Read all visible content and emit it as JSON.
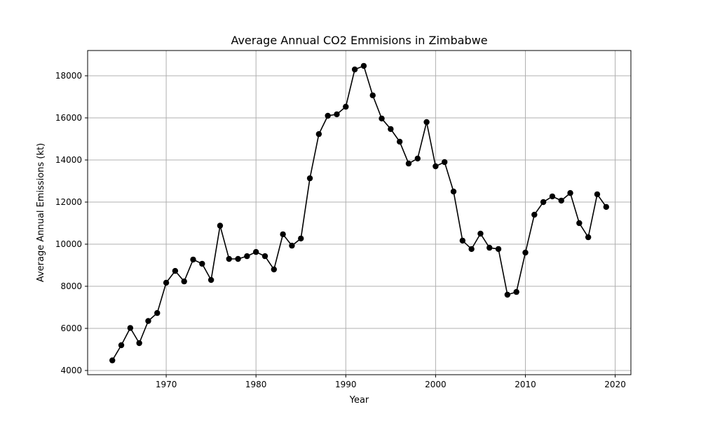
{
  "chart_data": {
    "type": "line",
    "title": "Average Annual CO2 Emmisions in Zimbabwe",
    "xlabel": "Year",
    "ylabel": "Average Annual Emissions (kt)",
    "xlim": [
      1961.25,
      2021.75
    ],
    "ylim": [
      3800,
      19200
    ],
    "x_ticks": [
      1970,
      1980,
      1990,
      2000,
      2010,
      2020
    ],
    "y_ticks": [
      4000,
      6000,
      8000,
      10000,
      12000,
      14000,
      16000,
      18000
    ],
    "grid": true,
    "line_color": "#000000",
    "marker": "circle",
    "series": [
      {
        "x": [
          1964,
          1965,
          1966,
          1967,
          1968,
          1969,
          1970,
          1971,
          1972,
          1973,
          1974,
          1975,
          1976,
          1977,
          1978,
          1979,
          1980,
          1981,
          1982,
          1983,
          1984,
          1985,
          1986,
          1987,
          1988,
          1989,
          1990,
          1991,
          1992,
          1993,
          1994,
          1995,
          1996,
          1997,
          1998,
          1999,
          2000,
          2001,
          2002,
          2003,
          2004,
          2005,
          2006,
          2007,
          2008,
          2009,
          2010,
          2011,
          2012,
          2013,
          2014,
          2015,
          2016,
          2017,
          2018,
          2019
        ],
        "values": [
          4480,
          5200,
          6020,
          5300,
          6350,
          6730,
          8170,
          8730,
          8230,
          9270,
          9070,
          8300,
          10880,
          9300,
          9300,
          9430,
          9630,
          9430,
          8800,
          10470,
          9930,
          10270,
          13130,
          15230,
          16100,
          16170,
          16530,
          18300,
          18470,
          17070,
          15970,
          15470,
          14870,
          13830,
          14070,
          15800,
          13700,
          13900,
          12500,
          10170,
          9770,
          10500,
          9830,
          9770,
          7600,
          7730,
          9600,
          11400,
          12000,
          12270,
          12070,
          12430,
          11000,
          10330,
          12370,
          11770
        ]
      }
    ]
  }
}
